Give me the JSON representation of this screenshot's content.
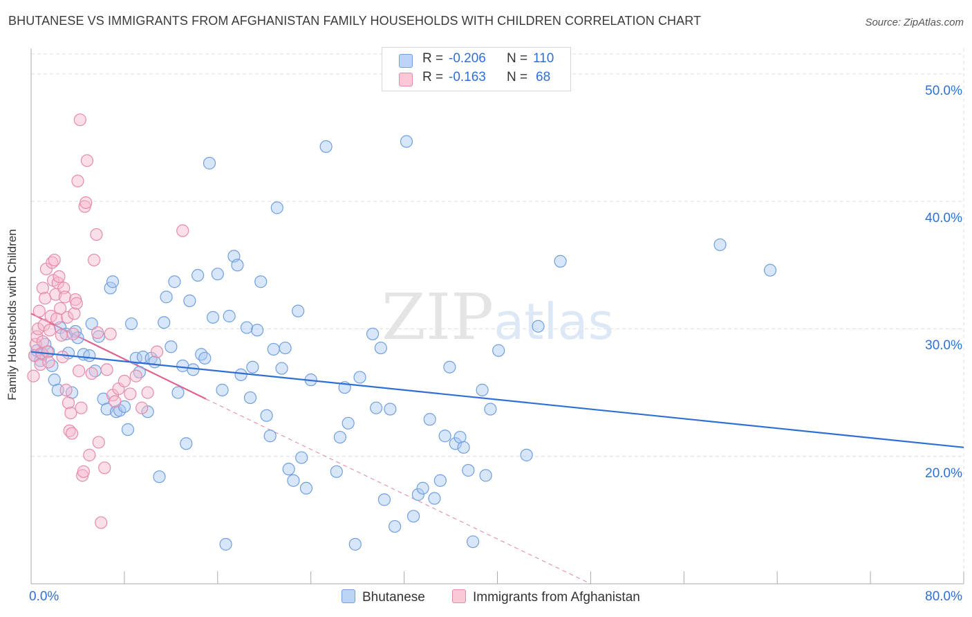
{
  "header": {
    "title": "BHUTANESE VS IMMIGRANTS FROM AFGHANISTAN FAMILY HOUSEHOLDS WITH CHILDREN CORRELATION CHART",
    "source": "Source: ZipAtlas.com"
  },
  "legend": {
    "row1": {
      "r_label": "R =",
      "r_value": "-0.206",
      "n_label": "N =",
      "n_value": "110"
    },
    "row2": {
      "r_label": "R =",
      "r_value": "-0.163",
      "n_label": "N =",
      "n_value": "68"
    }
  },
  "colors": {
    "blue_fill": "#a9c8f2",
    "blue_stroke": "#6f9fdf",
    "blue_line": "#2e6fd6",
    "pink_fill": "#f7b9cc",
    "pink_stroke": "#e58aa8",
    "pink_line": "#e0608e",
    "grid": "#dcdcdc",
    "axis_text": "#2e6fd6"
  },
  "chart_data": {
    "type": "scatter",
    "title": "BHUTANESE VS IMMIGRANTS FROM AFGHANISTAN FAMILY HOUSEHOLDS WITH CHILDREN CORRELATION CHART",
    "xlabel": "",
    "ylabel": "Family Households with Children",
    "xlim": [
      0,
      80
    ],
    "ylim": [
      10,
      52
    ],
    "x_tick_labels": {
      "min": "0.0%",
      "max": "80.0%"
    },
    "y_ticks": [
      20,
      30,
      40,
      50
    ],
    "y_tick_labels": [
      "20.0%",
      "30.0%",
      "40.0%",
      "50.0%"
    ],
    "legend_position": "top-center",
    "watermark": "ZIPatlas",
    "series": [
      {
        "name": "Bhutanese",
        "r": -0.206,
        "n": 110,
        "trend": {
          "x0": 0,
          "y0": 28.2,
          "x1": 80,
          "y1": 20.7
        },
        "points": [
          [
            0.3,
            27.9
          ],
          [
            0.5,
            28.3
          ],
          [
            0.8,
            27.5
          ],
          [
            1.0,
            28.0
          ],
          [
            1.2,
            28.8
          ],
          [
            1.5,
            28.2
          ],
          [
            1.8,
            27.1
          ],
          [
            2.0,
            26.0
          ],
          [
            2.3,
            25.2
          ],
          [
            2.5,
            30.1
          ],
          [
            3.0,
            29.6
          ],
          [
            3.2,
            28.1
          ],
          [
            3.5,
            25.0
          ],
          [
            3.8,
            29.8
          ],
          [
            4.0,
            29.3
          ],
          [
            4.5,
            28.0
          ],
          [
            5.0,
            27.9
          ],
          [
            5.2,
            30.4
          ],
          [
            5.5,
            26.7
          ],
          [
            5.8,
            29.4
          ],
          [
            6.2,
            24.5
          ],
          [
            6.5,
            23.7
          ],
          [
            6.8,
            33.2
          ],
          [
            7.0,
            33.7
          ],
          [
            7.3,
            23.5
          ],
          [
            7.6,
            23.6
          ],
          [
            8.0,
            23.9
          ],
          [
            8.3,
            22.1
          ],
          [
            8.6,
            30.4
          ],
          [
            9.0,
            27.7
          ],
          [
            9.3,
            26.6
          ],
          [
            9.6,
            27.8
          ],
          [
            10.0,
            23.5
          ],
          [
            10.3,
            27.7
          ],
          [
            10.6,
            27.4
          ],
          [
            11.0,
            18.4
          ],
          [
            11.4,
            30.5
          ],
          [
            11.6,
            32.5
          ],
          [
            12.0,
            28.6
          ],
          [
            12.3,
            33.7
          ],
          [
            12.6,
            25.0
          ],
          [
            13.0,
            27.1
          ],
          [
            13.3,
            21.0
          ],
          [
            13.6,
            32.2
          ],
          [
            13.9,
            26.8
          ],
          [
            14.3,
            34.2
          ],
          [
            14.6,
            28.0
          ],
          [
            14.9,
            27.7
          ],
          [
            15.3,
            43.0
          ],
          [
            15.6,
            30.9
          ],
          [
            16.0,
            34.3
          ],
          [
            16.4,
            25.2
          ],
          [
            16.7,
            13.1
          ],
          [
            17.0,
            31.0
          ],
          [
            17.4,
            35.7
          ],
          [
            17.7,
            35.0
          ],
          [
            18.0,
            26.4
          ],
          [
            18.5,
            30.1
          ],
          [
            18.8,
            24.6
          ],
          [
            19.0,
            27.0
          ],
          [
            19.4,
            29.9
          ],
          [
            19.7,
            33.7
          ],
          [
            20.2,
            23.2
          ],
          [
            20.5,
            21.6
          ],
          [
            20.8,
            28.4
          ],
          [
            21.1,
            39.5
          ],
          [
            21.5,
            26.9
          ],
          [
            21.8,
            28.5
          ],
          [
            22.1,
            19.0
          ],
          [
            22.5,
            18.1
          ],
          [
            22.9,
            31.4
          ],
          [
            23.2,
            19.9
          ],
          [
            23.6,
            17.5
          ],
          [
            24.0,
            26.0
          ],
          [
            25.3,
            44.3
          ],
          [
            26.2,
            18.8
          ],
          [
            26.5,
            21.5
          ],
          [
            26.9,
            25.4
          ],
          [
            27.2,
            22.6
          ],
          [
            27.8,
            13.1
          ],
          [
            28.2,
            26.2
          ],
          [
            29.3,
            29.6
          ],
          [
            29.6,
            23.8
          ],
          [
            30.0,
            28.5
          ],
          [
            30.3,
            16.6
          ],
          [
            30.8,
            23.7
          ],
          [
            31.2,
            14.5
          ],
          [
            32.2,
            44.7
          ],
          [
            32.8,
            15.3
          ],
          [
            33.2,
            17.0
          ],
          [
            33.6,
            17.5
          ],
          [
            34.2,
            22.9
          ],
          [
            34.6,
            16.7
          ],
          [
            35.1,
            18.1
          ],
          [
            35.5,
            21.6
          ],
          [
            35.9,
            27.0
          ],
          [
            36.4,
            21.0
          ],
          [
            36.8,
            21.5
          ],
          [
            37.1,
            20.7
          ],
          [
            37.5,
            18.9
          ],
          [
            37.9,
            13.3
          ],
          [
            38.7,
            25.2
          ],
          [
            39.0,
            18.5
          ],
          [
            39.4,
            23.7
          ],
          [
            40.1,
            28.3
          ],
          [
            42.5,
            20.1
          ],
          [
            43.5,
            30.2
          ],
          [
            45.4,
            35.3
          ],
          [
            59.1,
            36.6
          ],
          [
            63.4,
            34.6
          ]
        ]
      },
      {
        "name": "Immigrants from Afghanistan",
        "r": -0.163,
        "n": 68,
        "trend": {
          "x0": 0,
          "y0": 31.2,
          "x1": 15,
          "y1": 24.5,
          "dash_x1": 48,
          "dash_y1": 10.0
        },
        "points": [
          [
            0.2,
            26.3
          ],
          [
            0.3,
            27.9
          ],
          [
            0.4,
            28.8
          ],
          [
            0.5,
            29.4
          ],
          [
            0.6,
            30.0
          ],
          [
            0.7,
            31.4
          ],
          [
            0.8,
            27.2
          ],
          [
            0.9,
            28.1
          ],
          [
            1.0,
            33.2
          ],
          [
            1.0,
            29.0
          ],
          [
            1.1,
            30.3
          ],
          [
            1.2,
            32.4
          ],
          [
            1.3,
            34.7
          ],
          [
            1.4,
            28.2
          ],
          [
            1.5,
            27.4
          ],
          [
            1.6,
            29.9
          ],
          [
            1.7,
            31.0
          ],
          [
            1.8,
            35.2
          ],
          [
            1.9,
            33.8
          ],
          [
            2.0,
            35.4
          ],
          [
            2.1,
            32.7
          ],
          [
            2.2,
            30.8
          ],
          [
            2.3,
            33.6
          ],
          [
            2.4,
            34.1
          ],
          [
            2.5,
            31.6
          ],
          [
            2.6,
            29.5
          ],
          [
            2.7,
            27.8
          ],
          [
            2.8,
            33.2
          ],
          [
            2.9,
            32.5
          ],
          [
            3.0,
            25.2
          ],
          [
            3.1,
            30.9
          ],
          [
            3.2,
            24.2
          ],
          [
            3.3,
            22.0
          ],
          [
            3.4,
            23.4
          ],
          [
            3.5,
            21.8
          ],
          [
            3.6,
            29.6
          ],
          [
            3.7,
            31.2
          ],
          [
            3.8,
            32.3
          ],
          [
            3.9,
            32.0
          ],
          [
            4.0,
            41.6
          ],
          [
            4.1,
            26.7
          ],
          [
            4.2,
            46.4
          ],
          [
            4.3,
            23.8
          ],
          [
            4.4,
            18.5
          ],
          [
            4.5,
            18.8
          ],
          [
            4.6,
            39.6
          ],
          [
            4.7,
            39.9
          ],
          [
            4.8,
            43.2
          ],
          [
            5.0,
            20.1
          ],
          [
            5.2,
            26.5
          ],
          [
            5.4,
            35.4
          ],
          [
            5.6,
            37.4
          ],
          [
            5.7,
            29.7
          ],
          [
            5.8,
            21.1
          ],
          [
            6.0,
            14.8
          ],
          [
            6.3,
            19.1
          ],
          [
            6.5,
            26.8
          ],
          [
            6.8,
            29.6
          ],
          [
            7.0,
            24.8
          ],
          [
            7.2,
            24.3
          ],
          [
            7.5,
            25.3
          ],
          [
            8.0,
            25.9
          ],
          [
            8.5,
            24.9
          ],
          [
            9.0,
            26.3
          ],
          [
            9.5,
            23.8
          ],
          [
            10.0,
            25.0
          ],
          [
            10.8,
            28.2
          ],
          [
            13.0,
            37.7
          ]
        ]
      }
    ]
  },
  "bottom_legend": {
    "item1": "Bhutanese",
    "item2": "Immigrants from Afghanistan"
  }
}
